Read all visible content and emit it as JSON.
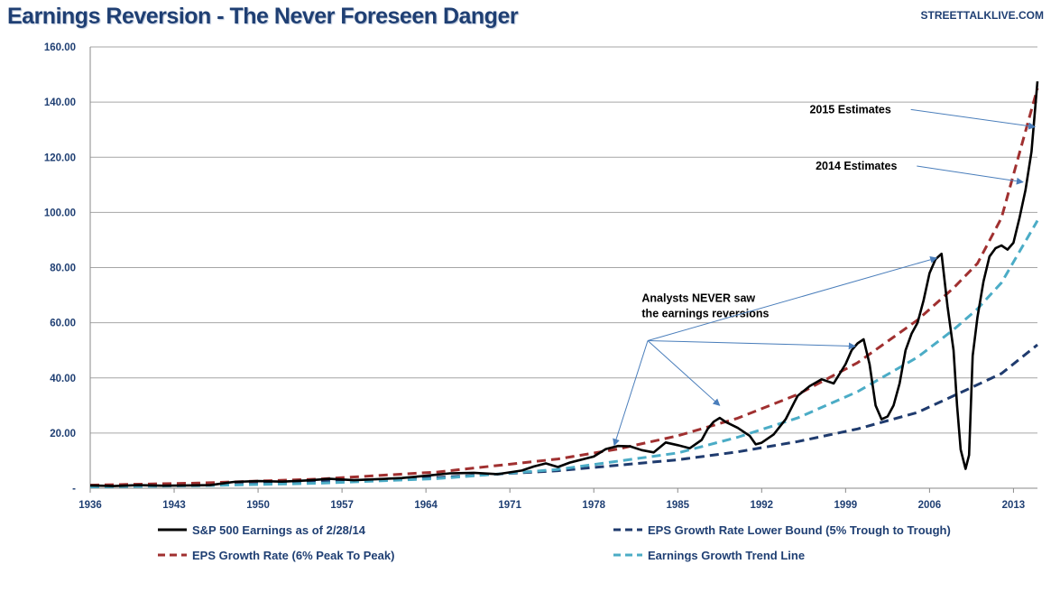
{
  "chart_data": {
    "type": "line",
    "title": "Earnings Reversion - The Never Foreseen Danger",
    "source": "STREETTALKLIVE.COM",
    "y_ticks": [
      "-",
      "20.00",
      "40.00",
      "60.00",
      "80.00",
      "100.00",
      "120.00",
      "140.00",
      "160.00"
    ],
    "y_tick_values": [
      0,
      20,
      40,
      60,
      80,
      100,
      120,
      140,
      160
    ],
    "x_ticks": [
      "1936",
      "1943",
      "1950",
      "1957",
      "1964",
      "1971",
      "1978",
      "1985",
      "1992",
      "1999",
      "2006",
      "2013"
    ],
    "x_tick_values": [
      1936,
      1943,
      1950,
      1957,
      1964,
      1971,
      1978,
      1985,
      1992,
      1999,
      2006,
      2013
    ],
    "xlim": [
      1936,
      2015
    ],
    "ylim": [
      0,
      160
    ],
    "grid": true,
    "series": [
      {
        "name": "S&P 500 Earnings as of 2/28/14",
        "color": "#000000",
        "style": "solid",
        "points": [
          [
            1936,
            1.0
          ],
          [
            1938,
            0.8
          ],
          [
            1940,
            1.1
          ],
          [
            1942,
            0.9
          ],
          [
            1944,
            1.0
          ],
          [
            1946,
            1.1
          ],
          [
            1948,
            2.3
          ],
          [
            1950,
            2.6
          ],
          [
            1952,
            2.4
          ],
          [
            1954,
            2.8
          ],
          [
            1956,
            3.4
          ],
          [
            1958,
            2.9
          ],
          [
            1960,
            3.3
          ],
          [
            1962,
            3.7
          ],
          [
            1964,
            4.5
          ],
          [
            1966,
            5.4
          ],
          [
            1968,
            5.6
          ],
          [
            1970,
            5.1
          ],
          [
            1972,
            6.4
          ],
          [
            1973,
            7.9
          ],
          [
            1974,
            9.0
          ],
          [
            1975,
            7.7
          ],
          [
            1976,
            9.3
          ],
          [
            1977,
            10.4
          ],
          [
            1978,
            11.5
          ],
          [
            1979,
            14.2
          ],
          [
            1980,
            15.3
          ],
          [
            1981,
            15.2
          ],
          [
            1982,
            13.8
          ],
          [
            1983,
            13.0
          ],
          [
            1984,
            16.6
          ],
          [
            1985,
            15.6
          ],
          [
            1986,
            14.5
          ],
          [
            1987,
            17.5
          ],
          [
            1987.5,
            21.5
          ],
          [
            1988,
            24.1
          ],
          [
            1988.5,
            25.5
          ],
          [
            1989,
            24.0
          ],
          [
            1990,
            21.9
          ],
          [
            1991,
            19.0
          ],
          [
            1991.5,
            15.9
          ],
          [
            1992,
            16.5
          ],
          [
            1993,
            19.5
          ],
          [
            1994,
            25.0
          ],
          [
            1994.7,
            31.0
          ],
          [
            1995,
            33.5
          ],
          [
            1996,
            37.0
          ],
          [
            1997,
            39.5
          ],
          [
            1998,
            38.0
          ],
          [
            1999,
            45.0
          ],
          [
            1999.5,
            50.0
          ],
          [
            2000,
            52.5
          ],
          [
            2000.5,
            54.0
          ],
          [
            2001,
            45.0
          ],
          [
            2001.5,
            30.0
          ],
          [
            2002,
            25.0
          ],
          [
            2002.5,
            26.0
          ],
          [
            2003,
            30.0
          ],
          [
            2003.5,
            38.0
          ],
          [
            2004,
            50.0
          ],
          [
            2004.5,
            56.0
          ],
          [
            2005,
            60.0
          ],
          [
            2005.5,
            68.0
          ],
          [
            2006,
            78.0
          ],
          [
            2006.5,
            83.0
          ],
          [
            2007,
            85.0
          ],
          [
            2007.5,
            66.0
          ],
          [
            2008,
            50.0
          ],
          [
            2008.3,
            30.0
          ],
          [
            2008.6,
            14.0
          ],
          [
            2009,
            7.0
          ],
          [
            2009.3,
            12.0
          ],
          [
            2009.6,
            48.0
          ],
          [
            2010,
            62.0
          ],
          [
            2010.5,
            75.0
          ],
          [
            2011,
            84.0
          ],
          [
            2011.5,
            87.0
          ],
          [
            2012,
            88.0
          ],
          [
            2012.5,
            86.5
          ],
          [
            2013,
            89.0
          ],
          [
            2013.5,
            98.0
          ],
          [
            2014,
            108.0
          ],
          [
            2014.5,
            122.0
          ],
          [
            2015,
            147.5
          ]
        ]
      },
      {
        "name": "EPS Growth Rate Lower Bound (5% Trough to Trough)",
        "color": "#1f3b6e",
        "style": "dashed",
        "points": [
          [
            1936,
            0.95
          ],
          [
            1945,
            1.47
          ],
          [
            1955,
            2.39
          ],
          [
            1965,
            3.9
          ],
          [
            1975,
            6.35
          ],
          [
            1985,
            10.3
          ],
          [
            1990,
            13.2
          ],
          [
            1995,
            16.9
          ],
          [
            2000,
            21.5
          ],
          [
            2005,
            27.5
          ],
          [
            2009,
            35.5
          ],
          [
            2012,
            41.6
          ],
          [
            2015,
            52.0
          ]
        ]
      },
      {
        "name": "EPS Growth Rate (6% Peak To Peak)",
        "color": "#a03030",
        "style": "dashed",
        "points": [
          [
            1936,
            1.1
          ],
          [
            1945,
            1.86
          ],
          [
            1955,
            3.3
          ],
          [
            1965,
            5.9
          ],
          [
            1975,
            10.6
          ],
          [
            1980,
            14.2
          ],
          [
            1985,
            19.0
          ],
          [
            1990,
            25.4
          ],
          [
            1995,
            34.0
          ],
          [
            2000,
            45.5
          ],
          [
            2005,
            61.0
          ],
          [
            2008,
            72.6
          ],
          [
            2010,
            81.5
          ],
          [
            2012,
            98.0
          ],
          [
            2015,
            145.0
          ]
        ]
      },
      {
        "name": "Earnings Growth Trend Line",
        "color": "#4bacc6",
        "style": "dashed",
        "points": [
          [
            1936,
            0.5
          ],
          [
            1945,
            0.9
          ],
          [
            1955,
            1.8
          ],
          [
            1965,
            3.5
          ],
          [
            1975,
            6.8
          ],
          [
            1985,
            12.8
          ],
          [
            1990,
            18.5
          ],
          [
            1995,
            25.5
          ],
          [
            2000,
            35.0
          ],
          [
            2005,
            47.5
          ],
          [
            2008,
            57.5
          ],
          [
            2010,
            65.0
          ],
          [
            2012,
            74.5
          ],
          [
            2015,
            97.0
          ]
        ]
      }
    ],
    "annotations": [
      {
        "text": "2015 Estimates",
        "x": 1996.0,
        "y": 136.0,
        "arrows": [
          [
            2014.8,
            131.0
          ]
        ]
      },
      {
        "text": "2014 Estimates",
        "x": 1996.5,
        "y": 115.5,
        "arrows": [
          [
            2013.8,
            111.0
          ]
        ]
      },
      {
        "text": [
          "Analysts NEVER saw",
          "the earnings reversions"
        ],
        "x": 1982.0,
        "y": 67.5,
        "arrows": [
          [
            1979.7,
            15.5
          ],
          [
            1988.5,
            30.0
          ],
          [
            1999.8,
            51.5
          ],
          [
            2006.6,
            83.5
          ]
        ],
        "origin": [
          1982.5,
          53.5
        ]
      }
    ],
    "legend": {
      "position": "bottom",
      "entries": [
        "S&P 500 Earnings as of 2/28/14",
        "EPS Growth Rate Lower Bound (5% Trough to Trough)",
        "EPS Growth Rate (6% Peak To Peak)",
        "Earnings Growth Trend Line"
      ]
    }
  }
}
